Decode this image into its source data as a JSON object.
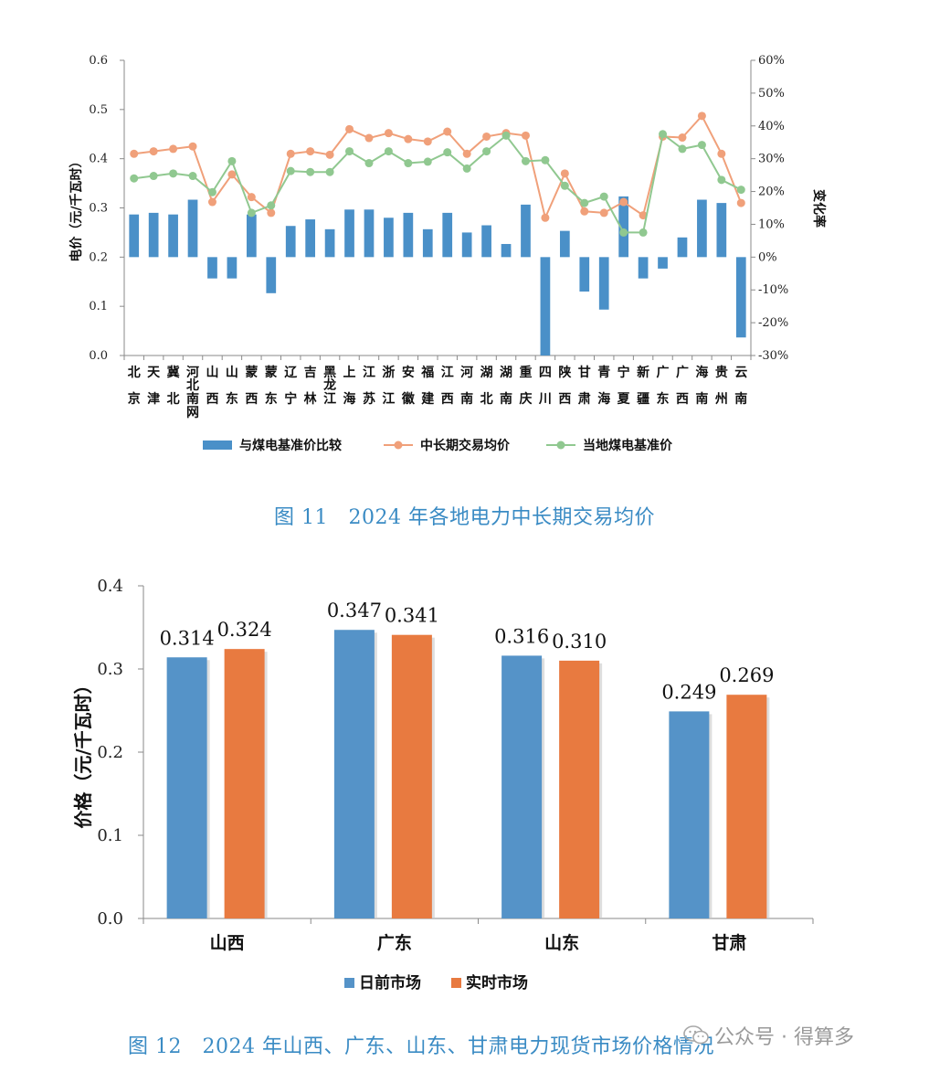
{
  "charts": [
    {
      "type": "bar+line",
      "title": "",
      "ylabel": "电价（元/千瓦时）",
      "y2label": "变化率",
      "ylim": [
        0,
        0.6
      ],
      "yticks": [
        "0.0",
        "0.1",
        "0.2",
        "0.3",
        "0.4",
        "0.5",
        "0.6"
      ],
      "y2lim": [
        -30,
        60
      ],
      "y2ticks": [
        "-30%",
        "-20%",
        "-10%",
        "0%",
        "10%",
        "20%",
        "30%",
        "40%",
        "50%",
        "60%"
      ],
      "categories": [
        "北京",
        "天津",
        "冀北",
        "河北南网",
        "山西",
        "山东",
        "蒙西",
        "蒙东",
        "辽宁",
        "吉林",
        "黑龙江",
        "上海",
        "江苏",
        "浙江",
        "安徽",
        "福建",
        "江西",
        "河南",
        "湖北",
        "湖南",
        "重庆",
        "四川",
        "陕西",
        "甘肃",
        "青海",
        "宁夏",
        "新疆",
        "广东",
        "广西",
        "海南",
        "贵州",
        "云南"
      ],
      "series": [
        {
          "name": "与煤电基准价比较",
          "kind": "bar",
          "axis": "right",
          "color": "#4a90c8",
          "values": [
            13,
            13.5,
            13,
            17.5,
            -6.5,
            -6.5,
            13,
            -11,
            9.5,
            11.5,
            8.5,
            14.5,
            14.5,
            12,
            13.5,
            8.5,
            13.5,
            7.5,
            9.7,
            4,
            16,
            -30,
            8,
            -10.5,
            -16,
            18.5,
            -6.5,
            -3.5,
            6,
            17.5,
            16.5,
            -24.5
          ]
        },
        {
          "name": "中长期交易均价",
          "kind": "line",
          "axis": "left",
          "color": "#f0a07a",
          "values": [
            0.41,
            0.415,
            0.42,
            0.425,
            0.312,
            0.368,
            0.322,
            0.29,
            0.41,
            0.415,
            0.408,
            0.46,
            0.442,
            0.452,
            0.44,
            0.435,
            0.455,
            0.41,
            0.445,
            0.452,
            0.447,
            0.28,
            0.37,
            0.293,
            0.29,
            0.312,
            0.285,
            0.445,
            0.443,
            0.487,
            0.41,
            0.31
          ]
        },
        {
          "name": "当地煤电基准价",
          "kind": "line",
          "axis": "left",
          "color": "#90c890",
          "values": [
            0.36,
            0.365,
            0.37,
            0.365,
            0.332,
            0.395,
            0.29,
            0.305,
            0.375,
            0.373,
            0.373,
            0.415,
            0.391,
            0.415,
            0.391,
            0.394,
            0.413,
            0.38,
            0.415,
            0.447,
            0.395,
            0.397,
            0.345,
            0.31,
            0.323,
            0.25,
            0.25,
            0.45,
            0.42,
            0.428,
            0.357,
            0.337
          ]
        }
      ]
    },
    {
      "type": "bar",
      "title": "",
      "ylabel": "价格（元/千瓦时）",
      "ylim": [
        0,
        0.4
      ],
      "yticks": [
        "0.0",
        "0.1",
        "0.2",
        "0.3",
        "0.4"
      ],
      "categories": [
        "山西",
        "广东",
        "山东",
        "甘肃"
      ],
      "series": [
        {
          "name": "日前市场",
          "color": "#5593c8",
          "values": [
            0.314,
            0.347,
            0.316,
            0.249
          ],
          "labels": [
            "0.314",
            "0.347",
            "0.316",
            "0.249"
          ]
        },
        {
          "name": "实时市场",
          "color": "#e87a40",
          "values": [
            0.324,
            0.341,
            0.31,
            0.269
          ],
          "labels": [
            "0.324",
            "0.341",
            "0.310",
            "0.269"
          ]
        }
      ]
    }
  ],
  "captions": {
    "fig11": "图 11　2024 年各地电力中长期交易均价",
    "fig12": "图 12　2024 年山西、广东、山东、甘肃电力现货市场价格情况"
  },
  "watermark": {
    "text": "公众号 · 得算多",
    "icon": "wechat-icon"
  }
}
